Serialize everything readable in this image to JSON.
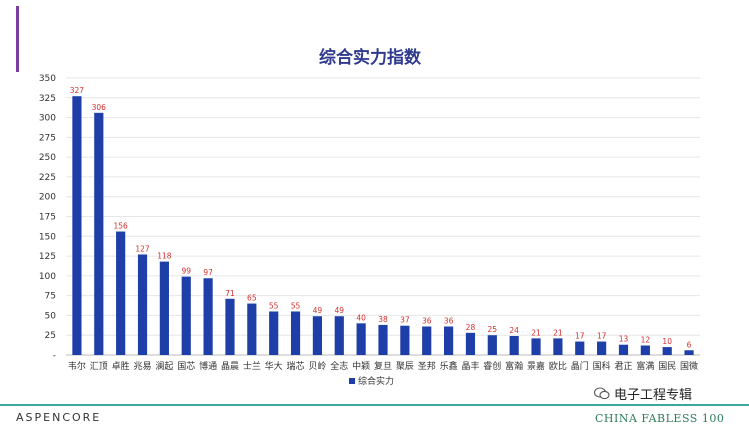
{
  "chart_data": {
    "type": "bar",
    "title": "综合实力指数",
    "categories": [
      "韦尔",
      "汇顶",
      "卓胜",
      "兆易",
      "澜起",
      "国芯",
      "博通",
      "晶晨",
      "士兰",
      "华大",
      "瑞芯",
      "贝岭",
      "全志",
      "中颖",
      "复旦",
      "聚辰",
      "圣邦",
      "乐鑫",
      "晶丰",
      "睿创",
      "富瀚",
      "景嘉",
      "欧比",
      "晶门",
      "国科",
      "君正",
      "富满",
      "国民",
      "国微"
    ],
    "series": [
      {
        "name": "综合实力",
        "values": [
          327,
          306,
          156,
          127,
          118,
          99,
          97,
          71,
          65,
          55,
          55,
          49,
          49,
          40,
          38,
          37,
          36,
          36,
          28,
          25,
          24,
          21,
          21,
          17,
          17,
          13,
          12,
          10,
          6
        ]
      }
    ],
    "ylim": [
      0,
      350
    ],
    "yticks": [
      "-",
      "25",
      "50",
      "75",
      "100",
      "125",
      "150",
      "175",
      "200",
      "225",
      "250",
      "275",
      "300",
      "325",
      "350"
    ],
    "grid": true,
    "legend": "bottom",
    "colors": {
      "bar": "#1f3fa8",
      "data_label": "#d32f2f",
      "title": "#2f3a8f"
    }
  },
  "footer": {
    "brand": "ASPENCORE",
    "wechat_name": "电子工程专辑",
    "tagline": "CHINA FABLESS 100"
  },
  "colors": {
    "accent": "#7b3fa0",
    "footer_line": "#3aa8a0"
  }
}
